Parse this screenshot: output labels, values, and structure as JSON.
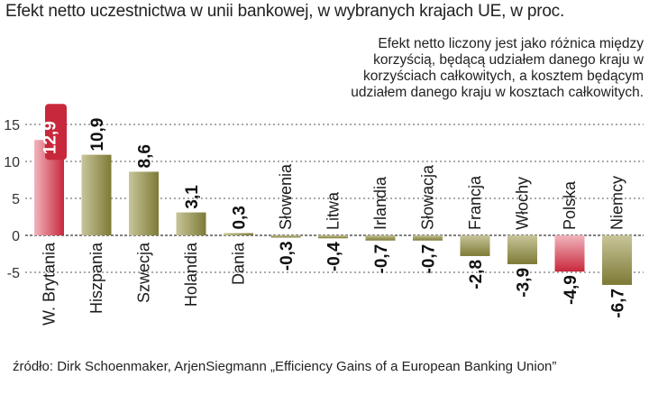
{
  "title": "Efekt netto uczestnictwa w unii bankowej, w wybranych krajach UE, w proc.",
  "note": "Efekt netto liczony jest jako różnica między korzyścią, będącą udziałem danego kraju w korzyściach całkowitych, a kosztem będącym udziałem danego kraju w kosztach całkowitych.",
  "source": "źródło: Dirk Schoenmaker, ArjenSiegmann „Efficiency Gains of a European Banking Union”",
  "colors": {
    "bar_olive": "#7d7a36",
    "bar_olive_light": "#c8c59a",
    "bar_red": "#c8283c",
    "bar_red_light": "#f1b5bd",
    "grid": "#555555"
  },
  "chart_data": {
    "type": "bar",
    "title": "Efekt netto uczestnictwa w unii bankowej, w wybranych krajach UE, w proc.",
    "categories": [
      "W. Brytania",
      "Hiszpania",
      "Szwecja",
      "Holandia",
      "Dania",
      "Słowenia",
      "Litwa",
      "Irlandia",
      "Słowacja",
      "Francja",
      "Włochy",
      "Polska",
      "Niemcy"
    ],
    "values": [
      12.9,
      10.9,
      8.6,
      3.1,
      0.3,
      -0.3,
      -0.4,
      -0.7,
      -0.7,
      -2.8,
      -3.9,
      -4.9,
      -6.7
    ],
    "value_labels": [
      "12,9",
      "10,9",
      "8,6",
      "3,1",
      "0,3",
      "-0,3",
      "-0,4",
      "-0,7",
      "-0,7",
      "-2,8",
      "-3,9",
      "-4,9",
      "-6,7"
    ],
    "highlighted": [
      "W. Brytania",
      "Polska"
    ],
    "yticks": [
      "15",
      "10",
      "5",
      "0",
      "-5"
    ],
    "ytick_values": [
      15,
      10,
      5,
      0,
      -5
    ],
    "ylim": [
      -7.5,
      15
    ],
    "grid": true,
    "xlabel": "",
    "ylabel": ""
  }
}
